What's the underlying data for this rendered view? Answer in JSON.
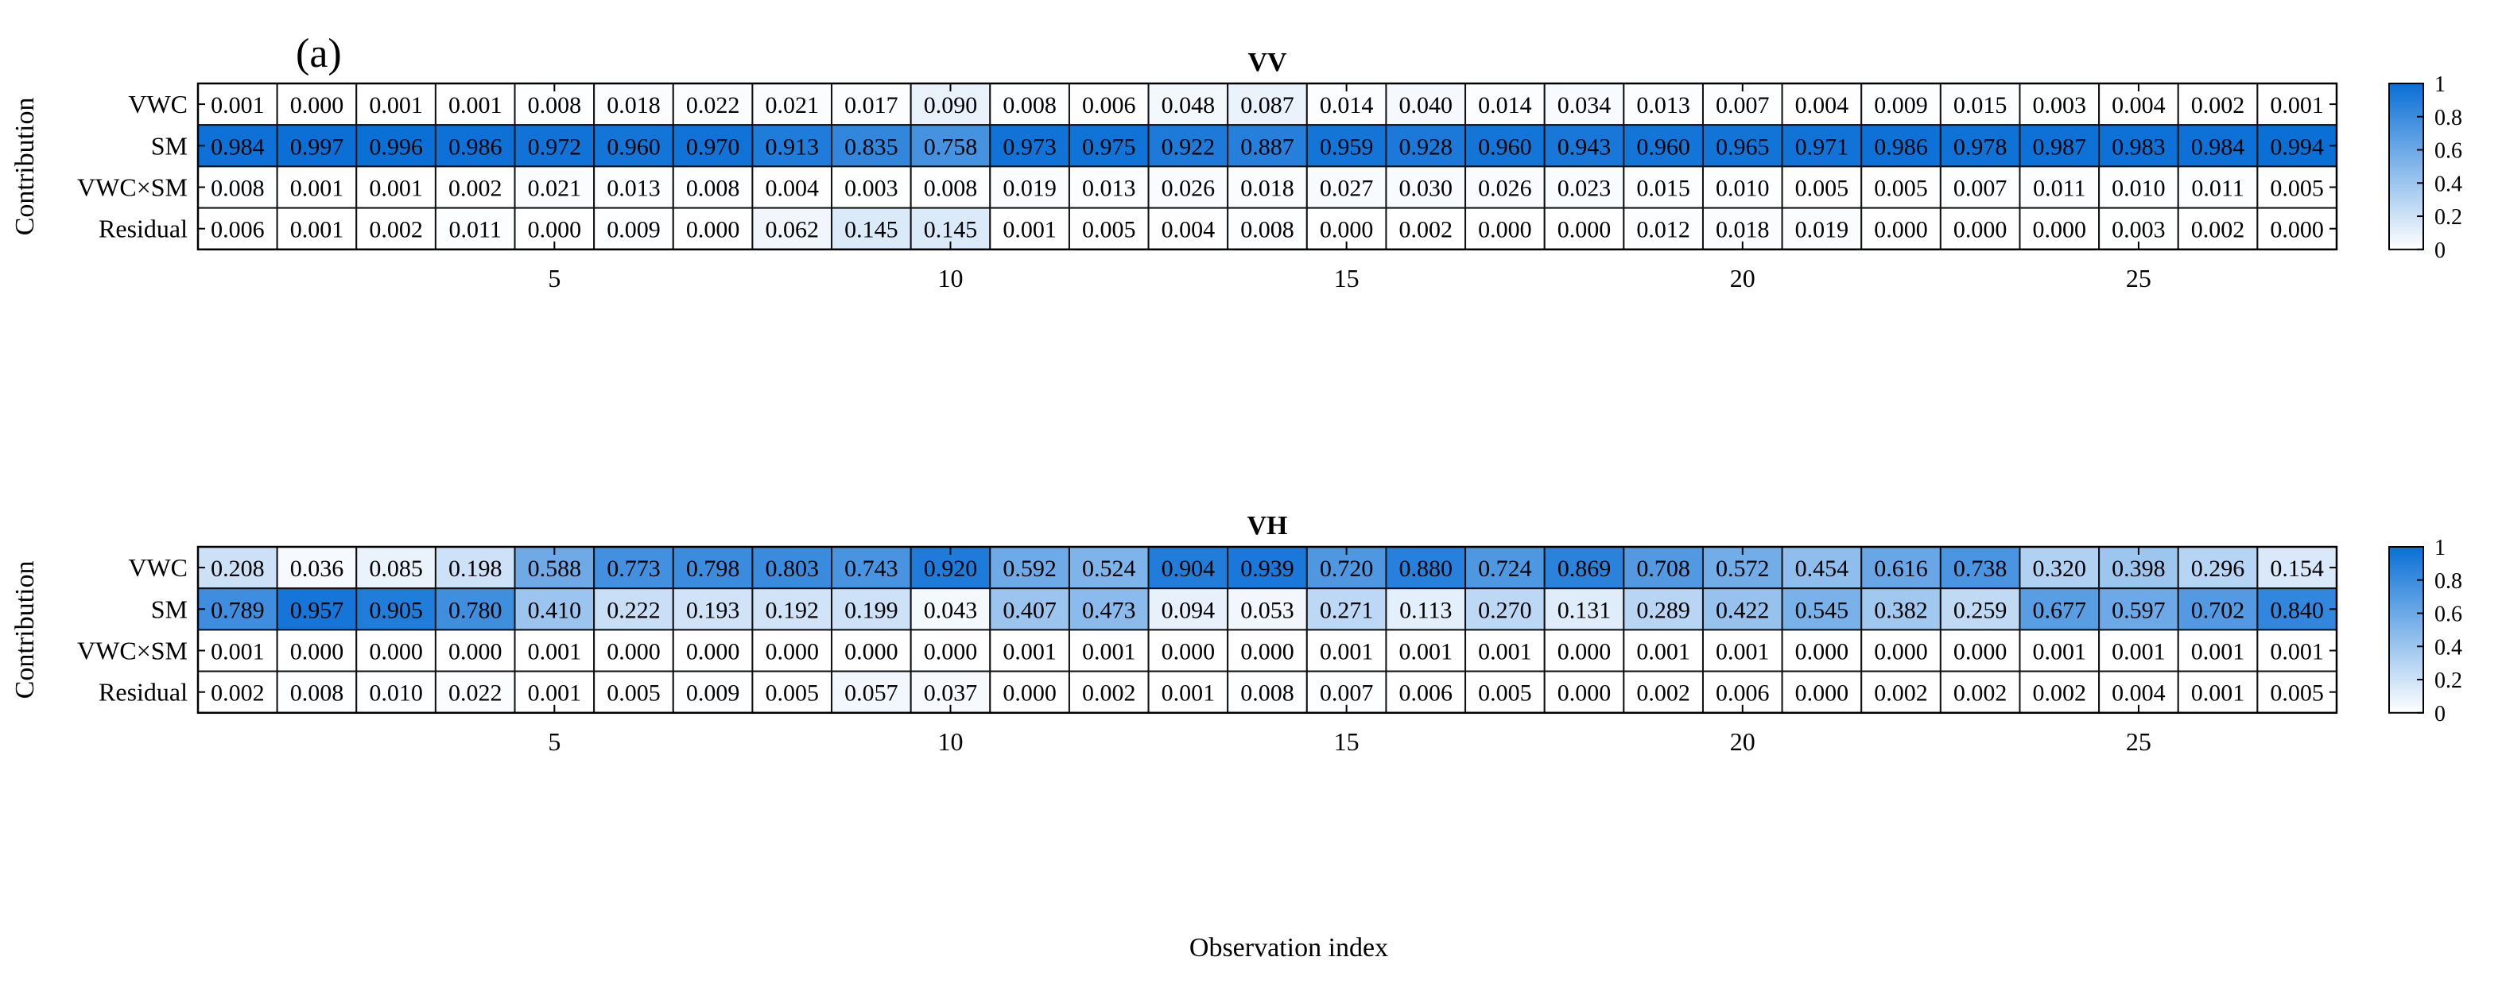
{
  "panel_label": "(a)",
  "xlabel": "Observation index",
  "chart_data": [
    {
      "type": "heatmap",
      "title": "VV",
      "ylabel": "Contribution",
      "rows": [
        "VWC",
        "SM",
        "VWC×SM",
        "Residual"
      ],
      "x": [
        1,
        2,
        3,
        4,
        5,
        6,
        7,
        8,
        9,
        10,
        11,
        12,
        13,
        14,
        15,
        16,
        17,
        18,
        19,
        20,
        21,
        22,
        23,
        24,
        25,
        26,
        27
      ],
      "xticks": [
        "5",
        "10",
        "15",
        "20",
        "25"
      ],
      "xtick_values": [
        5,
        10,
        15,
        20,
        25
      ],
      "values": [
        [
          "0.001",
          "0.000",
          "0.001",
          "0.001",
          "0.008",
          "0.018",
          "0.022",
          "0.021",
          "0.017",
          "0.090",
          "0.008",
          "0.006",
          "0.048",
          "0.087",
          "0.014",
          "0.040",
          "0.014",
          "0.034",
          "0.013",
          "0.007",
          "0.004",
          "0.009",
          "0.015",
          "0.003",
          "0.004",
          "0.002",
          "0.001"
        ],
        [
          "0.984",
          "0.997",
          "0.996",
          "0.986",
          "0.972",
          "0.960",
          "0.970",
          "0.913",
          "0.835",
          "0.758",
          "0.973",
          "0.975",
          "0.922",
          "0.887",
          "0.959",
          "0.928",
          "0.960",
          "0.943",
          "0.960",
          "0.965",
          "0.971",
          "0.986",
          "0.978",
          "0.987",
          "0.983",
          "0.984",
          "0.994"
        ],
        [
          "0.008",
          "0.001",
          "0.001",
          "0.002",
          "0.021",
          "0.013",
          "0.008",
          "0.004",
          "0.003",
          "0.008",
          "0.019",
          "0.013",
          "0.026",
          "0.018",
          "0.027",
          "0.030",
          "0.026",
          "0.023",
          "0.015",
          "0.010",
          "0.005",
          "0.005",
          "0.007",
          "0.011",
          "0.010",
          "0.011",
          "0.005"
        ],
        [
          "0.006",
          "0.001",
          "0.002",
          "0.011",
          "0.000",
          "0.009",
          "0.000",
          "0.062",
          "0.145",
          "0.145",
          "0.001",
          "0.005",
          "0.004",
          "0.008",
          "0.000",
          "0.002",
          "0.000",
          "0.000",
          "0.012",
          "0.018",
          "0.019",
          "0.000",
          "0.000",
          "0.000",
          "0.003",
          "0.002",
          "0.000"
        ]
      ],
      "colorbar": {
        "range": [
          0,
          1
        ],
        "ticks": [
          "0",
          "0.2",
          "0.4",
          "0.6",
          "0.8",
          "1"
        ],
        "tick_values": [
          0,
          0.2,
          0.4,
          0.6,
          0.8,
          1
        ]
      },
      "colors": {
        "low": "#ffffff",
        "high": "#0a6fd6"
      }
    },
    {
      "type": "heatmap",
      "title": "VH",
      "ylabel": "Contribution",
      "rows": [
        "VWC",
        "SM",
        "VWC×SM",
        "Residual"
      ],
      "x": [
        1,
        2,
        3,
        4,
        5,
        6,
        7,
        8,
        9,
        10,
        11,
        12,
        13,
        14,
        15,
        16,
        17,
        18,
        19,
        20,
        21,
        22,
        23,
        24,
        25,
        26,
        27
      ],
      "xticks": [
        "5",
        "10",
        "15",
        "20",
        "25"
      ],
      "xtick_values": [
        5,
        10,
        15,
        20,
        25
      ],
      "values": [
        [
          "0.208",
          "0.036",
          "0.085",
          "0.198",
          "0.588",
          "0.773",
          "0.798",
          "0.803",
          "0.743",
          "0.920",
          "0.592",
          "0.524",
          "0.904",
          "0.939",
          "0.720",
          "0.880",
          "0.724",
          "0.869",
          "0.708",
          "0.572",
          "0.454",
          "0.616",
          "0.738",
          "0.320",
          "0.398",
          "0.296",
          "0.154"
        ],
        [
          "0.789",
          "0.957",
          "0.905",
          "0.780",
          "0.410",
          "0.222",
          "0.193",
          "0.192",
          "0.199",
          "0.043",
          "0.407",
          "0.473",
          "0.094",
          "0.053",
          "0.271",
          "0.113",
          "0.270",
          "0.131",
          "0.289",
          "0.422",
          "0.545",
          "0.382",
          "0.259",
          "0.677",
          "0.597",
          "0.702",
          "0.840"
        ],
        [
          "0.001",
          "0.000",
          "0.000",
          "0.000",
          "0.001",
          "0.000",
          "0.000",
          "0.000",
          "0.000",
          "0.000",
          "0.001",
          "0.001",
          "0.000",
          "0.000",
          "0.001",
          "0.001",
          "0.001",
          "0.000",
          "0.001",
          "0.001",
          "0.000",
          "0.000",
          "0.000",
          "0.001",
          "0.001",
          "0.001",
          "0.001"
        ],
        [
          "0.002",
          "0.008",
          "0.010",
          "0.022",
          "0.001",
          "0.005",
          "0.009",
          "0.005",
          "0.057",
          "0.037",
          "0.000",
          "0.002",
          "0.001",
          "0.008",
          "0.007",
          "0.006",
          "0.005",
          "0.000",
          "0.002",
          "0.006",
          "0.000",
          "0.002",
          "0.002",
          "0.002",
          "0.004",
          "0.001",
          "0.005"
        ]
      ],
      "colorbar": {
        "range": [
          0,
          1
        ],
        "ticks": [
          "0",
          "0.2",
          "0.4",
          "0.6",
          "0.8",
          "1"
        ],
        "tick_values": [
          0,
          0.2,
          0.4,
          0.6,
          0.8,
          1
        ]
      },
      "colors": {
        "low": "#ffffff",
        "high": "#0a6fd6"
      }
    }
  ]
}
